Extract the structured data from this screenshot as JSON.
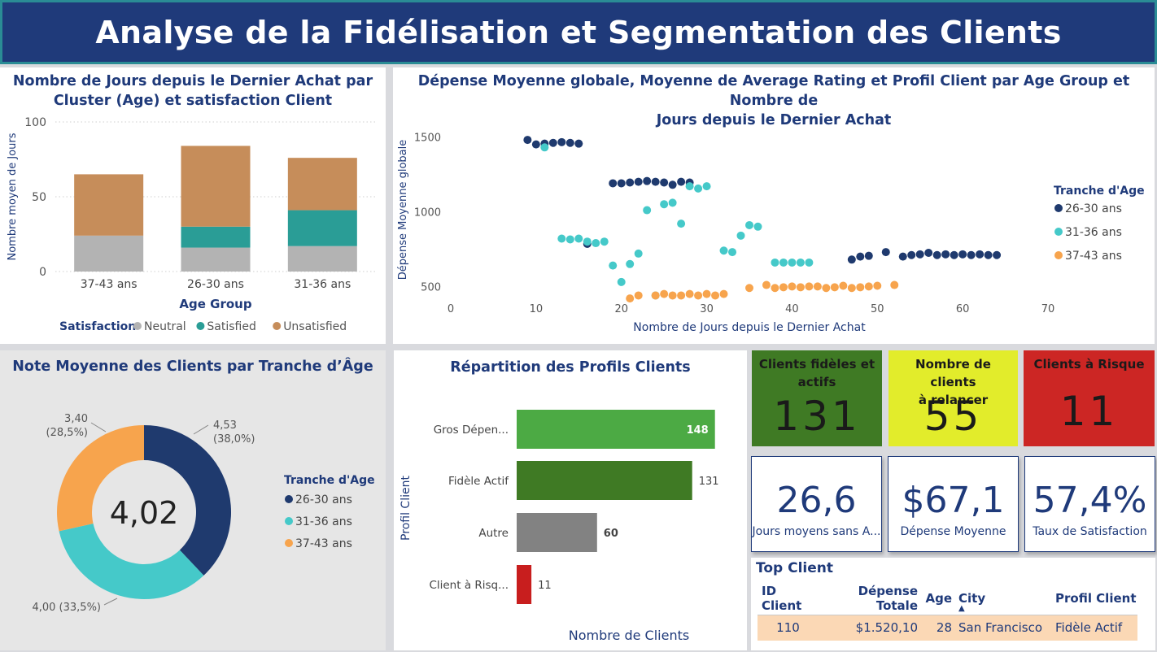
{
  "header": {
    "title": "Analyse de la Fidélisation et Segmentation des Clients"
  },
  "panels": {
    "stacked": {
      "title_line1": "Nombre de Jours depuis le Dernier Achat par",
      "title_line2": "Cluster (Age) et satisfaction Client"
    },
    "scatter": {
      "title_line1": "Dépense Moyenne globale, Moyenne de Average Rating et Profil Client par Age Group et Nombre de",
      "title_line2": "Jours depuis le Dernier Achat"
    },
    "donut": {
      "title": "Note Moyenne des Clients par Tranche d’Âge",
      "center_value": "4,02"
    },
    "profile": {
      "title": "Répartition des Profils Clients"
    }
  },
  "kpis": [
    {
      "label_line1": "Clients fidèles et",
      "label_line2": "actifs",
      "value": "131",
      "bg": "#3f7a24"
    },
    {
      "label_line1": "Nombre de clients",
      "label_line2": "à relancer",
      "value": "55",
      "bg": "#e2ec2b"
    },
    {
      "label_line1": "Clients à Risque",
      "label_line2": "",
      "value": "11",
      "bg": "#cc2624"
    }
  ],
  "cards": [
    {
      "value": "26,6",
      "label": "Jours moyens sans A..."
    },
    {
      "value": "$67,1",
      "label": "Dépense Moyenne"
    },
    {
      "value": "57,4%",
      "label": "Taux de Satisfaction"
    }
  ],
  "top_client": {
    "title": "Top Client",
    "columns": [
      "ID Client",
      "Dépense Totale",
      "Age",
      "City",
      "Profil Client"
    ],
    "sort_indicator": "▲",
    "row": [
      "110",
      "$1.520,10",
      "28",
      "San Francisco",
      "Fidèle Actif"
    ]
  },
  "chart_data": [
    {
      "type": "bar",
      "stacked": true,
      "title": "Nombre de Jours depuis le Dernier Achat par Cluster (Age) et satisfaction Client",
      "xlabel": "Age Group",
      "ylabel": "Nombre moyen de Jours",
      "ylim": [
        0,
        100
      ],
      "yticks": [
        0,
        50,
        100
      ],
      "categories": [
        "37-43 ans",
        "26-30 ans",
        "31-36 ans"
      ],
      "legend_title": "Satisfaction",
      "series": [
        {
          "name": "Neutral",
          "color": "#b3b3b3",
          "values": [
            24,
            16,
            17
          ]
        },
        {
          "name": "Satisfied",
          "color": "#2a9d96",
          "values": [
            0,
            14,
            24
          ]
        },
        {
          "name": "Unsatisfied",
          "color": "#c68d5a",
          "values": [
            41,
            54,
            35
          ]
        }
      ]
    },
    {
      "type": "scatter",
      "title": "Dépense Moyenne globale, Moyenne de Average Rating et Profil Client par Age Group et Nombre de Jours depuis le Dernier Achat",
      "xlabel": "Nombre de Jours depuis le Dernier Achat",
      "ylabel": "Dépense Moyenne globale",
      "xlim": [
        0,
        70
      ],
      "ylim": [
        350,
        1600
      ],
      "xticks": [
        0,
        10,
        20,
        30,
        40,
        50,
        60,
        70
      ],
      "yticks": [
        500,
        1000,
        1500
      ],
      "legend_title": "Tranche d'Age",
      "series": [
        {
          "name": "26-30 ans",
          "color": "#1f3a6e",
          "points": [
            [
              9,
              1480
            ],
            [
              10,
              1450
            ],
            [
              11,
              1455
            ],
            [
              12,
              1460
            ],
            [
              13,
              1465
            ],
            [
              14,
              1460
            ],
            [
              15,
              1455
            ],
            [
              16,
              785
            ],
            [
              19,
              1190
            ],
            [
              20,
              1190
            ],
            [
              21,
              1195
            ],
            [
              22,
              1200
            ],
            [
              23,
              1205
            ],
            [
              24,
              1200
            ],
            [
              25,
              1195
            ],
            [
              26,
              1180
            ],
            [
              27,
              1200
            ],
            [
              28,
              1195
            ],
            [
              47,
              680
            ],
            [
              48,
              700
            ],
            [
              49,
              705
            ],
            [
              51,
              730
            ],
            [
              53,
              700
            ],
            [
              54,
              710
            ],
            [
              55,
              715
            ],
            [
              56,
              725
            ],
            [
              57,
              710
            ],
            [
              58,
              715
            ],
            [
              59,
              710
            ],
            [
              60,
              715
            ],
            [
              61,
              710
            ],
            [
              62,
              715
            ],
            [
              63,
              710
            ],
            [
              64,
              710
            ]
          ]
        },
        {
          "name": "31-36 ans",
          "color": "#45c9c9",
          "points": [
            [
              11,
              1430
            ],
            [
              13,
              820
            ],
            [
              14,
              815
            ],
            [
              15,
              820
            ],
            [
              16,
              800
            ],
            [
              17,
              790
            ],
            [
              18,
              800
            ],
            [
              19,
              640
            ],
            [
              20,
              530
            ],
            [
              21,
              650
            ],
            [
              22,
              720
            ],
            [
              23,
              1010
            ],
            [
              24,
              440
            ],
            [
              25,
              1050
            ],
            [
              26,
              1060
            ],
            [
              27,
              920
            ],
            [
              28,
              1170
            ],
            [
              29,
              1155
            ],
            [
              30,
              1170
            ],
            [
              32,
              740
            ],
            [
              33,
              730
            ],
            [
              34,
              840
            ],
            [
              35,
              910
            ],
            [
              36,
              900
            ],
            [
              38,
              660
            ],
            [
              39,
              660
            ],
            [
              40,
              660
            ],
            [
              41,
              660
            ],
            [
              42,
              660
            ]
          ]
        },
        {
          "name": "37-43 ans",
          "color": "#f7a44d",
          "points": [
            [
              21,
              420
            ],
            [
              22,
              440
            ],
            [
              24,
              440
            ],
            [
              25,
              450
            ],
            [
              26,
              440
            ],
            [
              27,
              440
            ],
            [
              28,
              450
            ],
            [
              29,
              440
            ],
            [
              30,
              450
            ],
            [
              31,
              440
            ],
            [
              32,
              450
            ],
            [
              35,
              490
            ],
            [
              37,
              510
            ],
            [
              38,
              490
            ],
            [
              39,
              495
            ],
            [
              40,
              500
            ],
            [
              41,
              495
            ],
            [
              42,
              500
            ],
            [
              43,
              500
            ],
            [
              44,
              490
            ],
            [
              45,
              495
            ],
            [
              46,
              505
            ],
            [
              47,
              490
            ],
            [
              48,
              495
            ],
            [
              49,
              500
            ],
            [
              50,
              505
            ],
            [
              52,
              510
            ]
          ]
        }
      ]
    },
    {
      "type": "pie",
      "donut": true,
      "title": "Note Moyenne des Clients par Tranche d’Âge",
      "legend_title": "Tranche d'Age",
      "center_label": "4,02",
      "slices": [
        {
          "name": "26-30 ans",
          "value": 4.53,
          "pct": "38,0%",
          "label_value": "4,53",
          "color": "#1f3a6e"
        },
        {
          "name": "31-36 ans",
          "value": 4.0,
          "pct": "33,5%",
          "label_value": "4,00",
          "color": "#45c9c9"
        },
        {
          "name": "37-43 ans",
          "value": 3.4,
          "pct": "28,5%",
          "label_value": "3,40",
          "color": "#f7a44d"
        }
      ]
    },
    {
      "type": "bar",
      "orientation": "horizontal",
      "title": "Répartition des Profils Clients",
      "xlabel": "Nombre de Clients",
      "ylabel": "Profil Client",
      "xlim": [
        0,
        150
      ],
      "categories": [
        "Gros Dépen...",
        "Fidèle Actif",
        "Autre",
        "Client à Risq..."
      ],
      "values": [
        148,
        131,
        60,
        11
      ],
      "colors": [
        "#4caa44",
        "#3f7a24",
        "#828282",
        "#c81e1e"
      ]
    }
  ]
}
